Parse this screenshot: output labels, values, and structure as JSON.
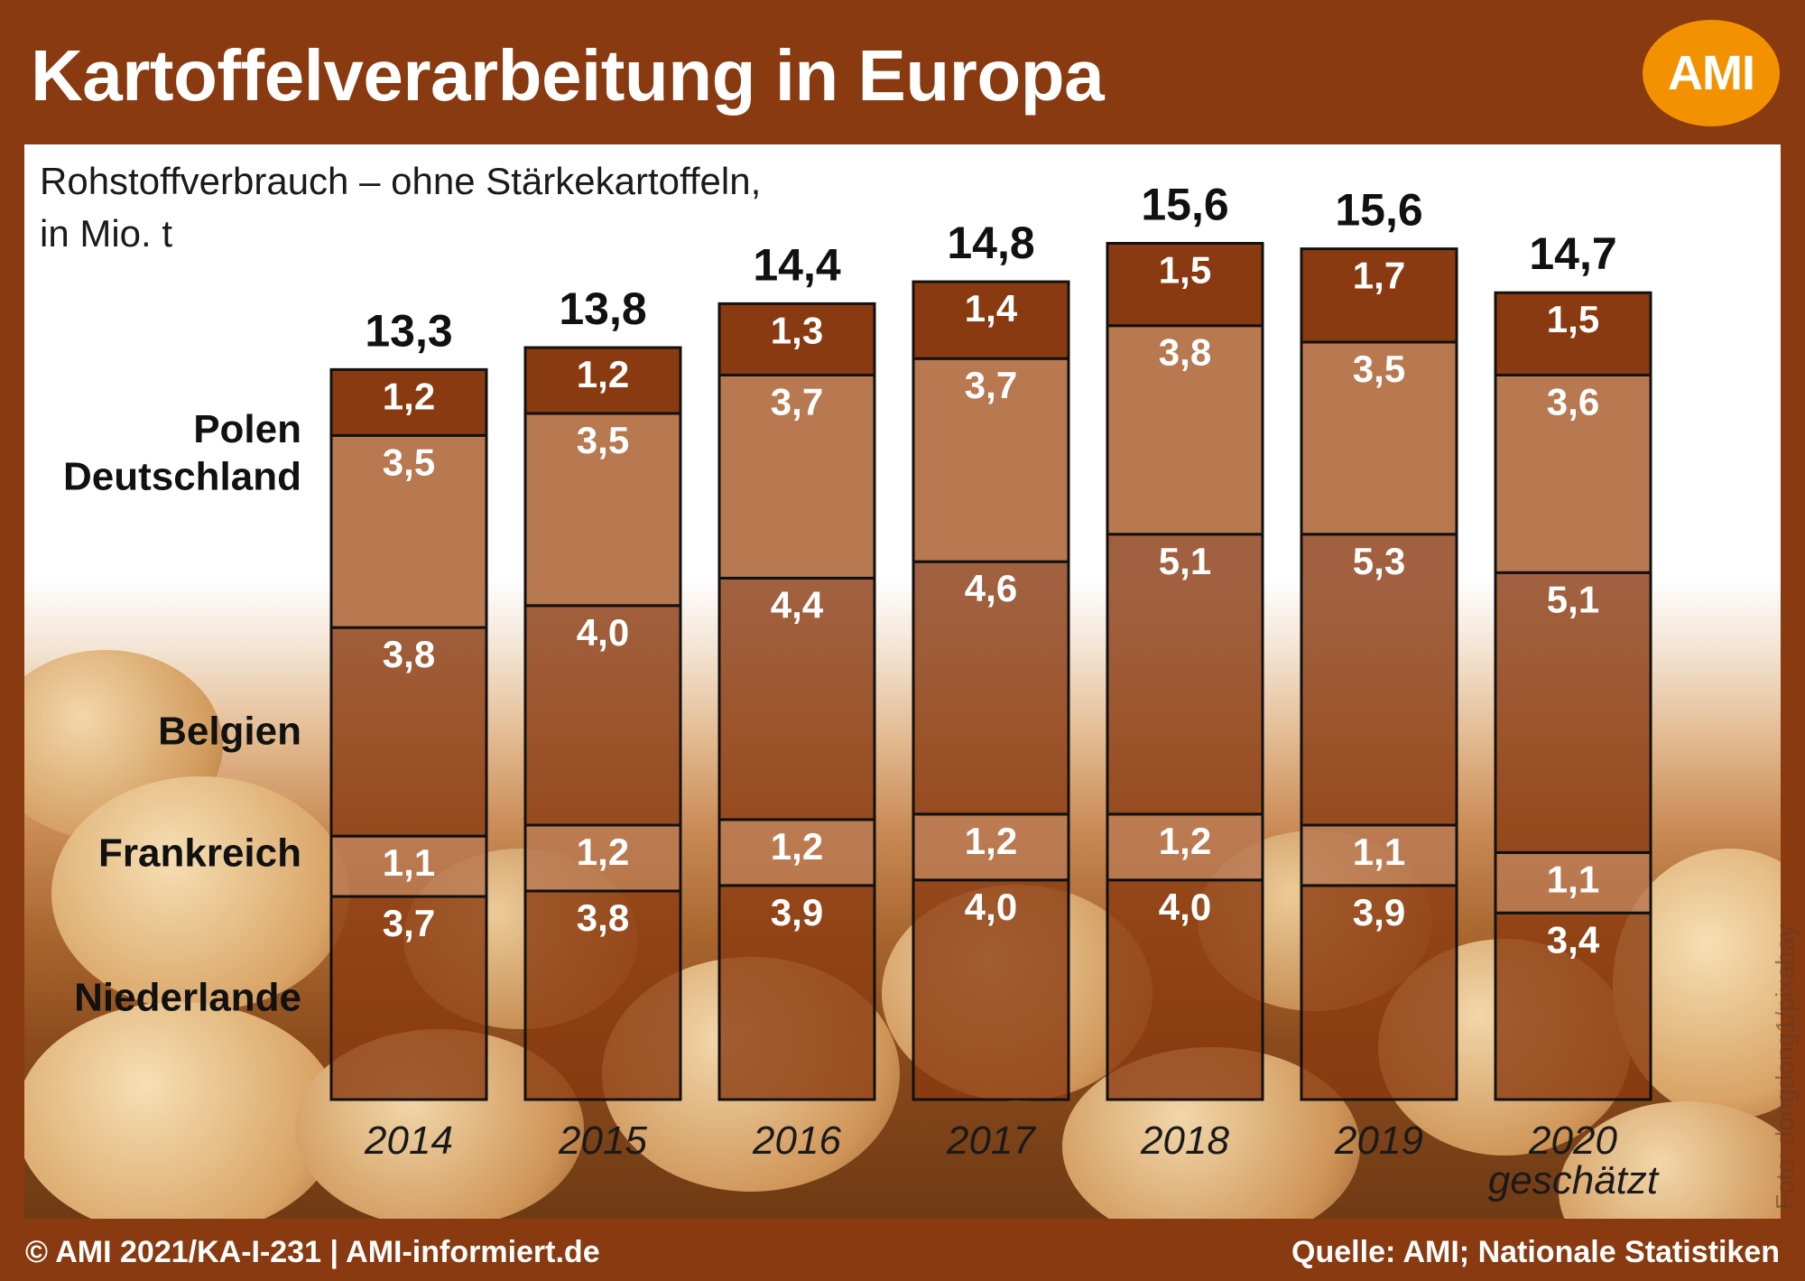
{
  "title": "Kartoffelverarbeitung in Europa",
  "logo": "AMI",
  "subtitle_line1": "Rohstoffverbrauch – ohne Stärkekartoffeln,",
  "subtitle_line2": "in Mio. t",
  "footer_left": "© AMI 2021/KA-I-231 | AMI-informiert.de",
  "footer_right": "Quelle: AMI; Nationale Statistiken",
  "photo_credit": "Foto: dongdong1/pixabay",
  "colors": {
    "header": "#8a3a10",
    "dark_segment": "#8a3a10",
    "light_segment": "#b87850",
    "accent": "#f39200"
  },
  "chart_data": {
    "type": "bar",
    "stacked": true,
    "unit": "Mio. t",
    "categories": [
      "2014",
      "2015",
      "2016",
      "2017",
      "2018",
      "2019",
      "2020"
    ],
    "category_notes": [
      "",
      "",
      "",
      "",
      "",
      "",
      "geschätzt"
    ],
    "series": [
      {
        "name": "Niederlande",
        "values": [
          3.7,
          3.8,
          3.9,
          4.0,
          4.0,
          3.9,
          3.4
        ],
        "labels": [
          "3,7",
          "3,8",
          "3,9",
          "4,0",
          "4,0",
          "3,9",
          "3,4"
        ]
      },
      {
        "name": "Frankreich",
        "values": [
          1.1,
          1.2,
          1.2,
          1.2,
          1.2,
          1.1,
          1.1
        ],
        "labels": [
          "1,1",
          "1,2",
          "1,2",
          "1,2",
          "1,2",
          "1,1",
          "1,1"
        ]
      },
      {
        "name": "Belgien",
        "values": [
          3.8,
          4.0,
          4.4,
          4.6,
          5.1,
          5.3,
          5.1
        ],
        "labels": [
          "3,8",
          "4,0",
          "4,4",
          "4,6",
          "5,1",
          "5,3",
          "5,1"
        ]
      },
      {
        "name": "Deutschland",
        "values": [
          3.5,
          3.5,
          3.7,
          3.7,
          3.8,
          3.5,
          3.6
        ],
        "labels": [
          "3,5",
          "3,5",
          "3,7",
          "3,7",
          "3,8",
          "3,5",
          "3,6"
        ]
      },
      {
        "name": "Polen",
        "values": [
          1.2,
          1.2,
          1.3,
          1.4,
          1.5,
          1.7,
          1.5
        ],
        "labels": [
          "1,2",
          "1,2",
          "1,3",
          "1,4",
          "1,5",
          "1,7",
          "1,5"
        ]
      }
    ],
    "totals": [
      13.3,
      13.8,
      14.4,
      14.8,
      15.6,
      15.6,
      14.7
    ],
    "total_labels": [
      "13,3",
      "13,8",
      "14,4",
      "14,8",
      "15,6",
      "15,6",
      "14,7"
    ],
    "legend_placement": "left, beside first bar",
    "grid": false
  }
}
